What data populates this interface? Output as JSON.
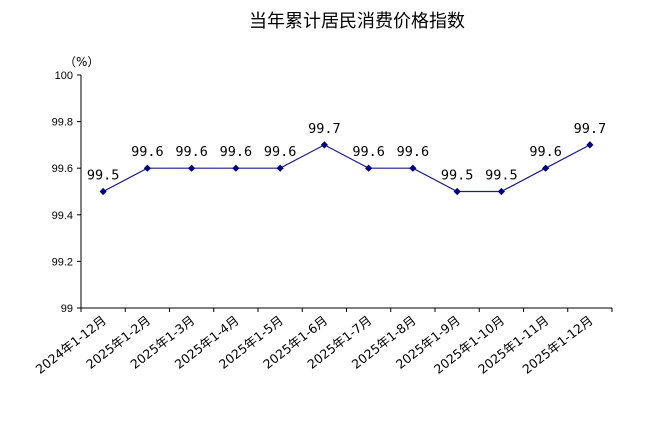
{
  "chart_data": {
    "type": "line",
    "title": "当年累计居民消费价格指数",
    "unit_label": "（%）",
    "categories": [
      "2024年1-12月",
      "2025年1-2月",
      "2025年1-3月",
      "2025年1-4月",
      "2025年1-5月",
      "2025年1-6月",
      "2025年1-7月",
      "2025年1-8月",
      "2025年1-9月",
      "2025年1-10月",
      "2025年1-11月",
      "2025年1-12月"
    ],
    "series": [
      {
        "values": [
          99.5,
          99.6,
          99.6,
          99.6,
          99.6,
          99.7,
          99.6,
          99.6,
          99.5,
          99.5,
          99.6,
          99.7
        ],
        "labels": [
          "99.5",
          "99.6",
          "99.6",
          "99.6",
          "99.6",
          "99.7",
          "99.6",
          "99.6",
          "99.5",
          "99.5",
          "99.6",
          "99.7"
        ]
      }
    ],
    "yticks": [
      "99",
      "99.2",
      "99.4",
      "99.6",
      "99.8",
      "100"
    ],
    "ylim": [
      99,
      100
    ],
    "grid": false,
    "legend": "none",
    "line_color": "#1a1a8c",
    "marker_color": "#000080"
  }
}
